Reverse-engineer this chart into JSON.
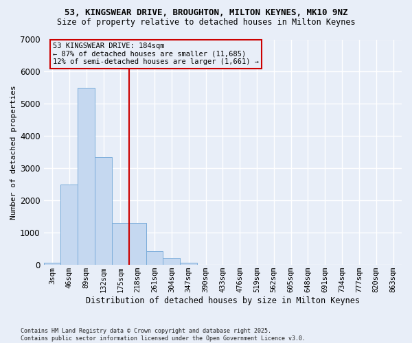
{
  "title_line1": "53, KINGSWEAR DRIVE, BROUGHTON, MILTON KEYNES, MK10 9NZ",
  "title_line2": "Size of property relative to detached houses in Milton Keynes",
  "xlabel": "Distribution of detached houses by size in Milton Keynes",
  "ylabel": "Number of detached properties",
  "categories": [
    "3sqm",
    "46sqm",
    "89sqm",
    "132sqm",
    "175sqm",
    "218sqm",
    "261sqm",
    "304sqm",
    "347sqm",
    "390sqm",
    "433sqm",
    "476sqm",
    "519sqm",
    "562sqm",
    "605sqm",
    "648sqm",
    "691sqm",
    "734sqm",
    "777sqm",
    "820sqm",
    "863sqm"
  ],
  "values": [
    70,
    2500,
    5500,
    3350,
    1300,
    1300,
    430,
    220,
    70,
    0,
    0,
    0,
    0,
    0,
    0,
    0,
    0,
    0,
    0,
    0,
    0
  ],
  "bar_color": "#c5d8f0",
  "bar_edge_color": "#7aacda",
  "vline_x": 4.5,
  "vline_color": "#cc0000",
  "annotation_text": "53 KINGSWEAR DRIVE: 184sqm\n← 87% of detached houses are smaller (11,685)\n12% of semi-detached houses are larger (1,661) →",
  "ylim_min": 0,
  "ylim_max": 7000,
  "yticks": [
    0,
    1000,
    2000,
    3000,
    4000,
    5000,
    6000,
    7000
  ],
  "bg_color": "#e8eef8",
  "grid_color": "#ffffff",
  "footer": "Contains HM Land Registry data © Crown copyright and database right 2025.\nContains public sector information licensed under the Open Government Licence v3.0."
}
